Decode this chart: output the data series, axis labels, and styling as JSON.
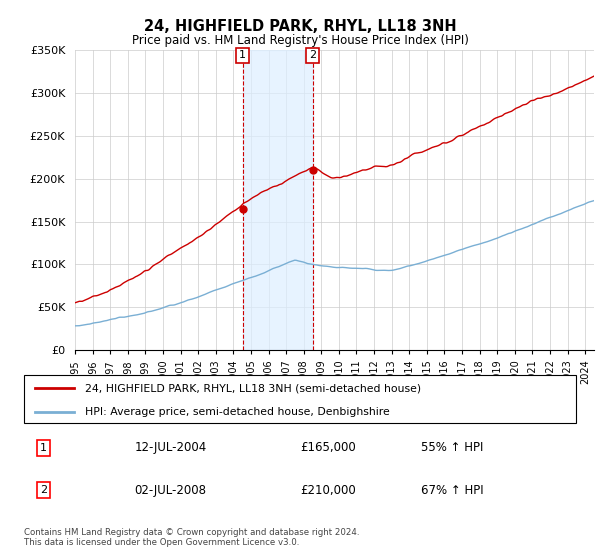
{
  "title": "24, HIGHFIELD PARK, RHYL, LL18 3NH",
  "subtitle": "Price paid vs. HM Land Registry's House Price Index (HPI)",
  "legend_line1": "24, HIGHFIELD PARK, RHYL, LL18 3NH (semi-detached house)",
  "legend_line2": "HPI: Average price, semi-detached house, Denbighshire",
  "sale1_date": "12-JUL-2004",
  "sale1_price": "£165,000",
  "sale1_pct": "55% ↑ HPI",
  "sale2_date": "02-JUL-2008",
  "sale2_price": "£210,000",
  "sale2_pct": "67% ↑ HPI",
  "footer": "Contains HM Land Registry data © Crown copyright and database right 2024.\nThis data is licensed under the Open Government Licence v3.0.",
  "red_color": "#cc0000",
  "blue_color": "#7aafd4",
  "shade_color": "#ddeeff",
  "ylim": [
    0,
    350000
  ],
  "yticks": [
    0,
    50000,
    100000,
    150000,
    200000,
    250000,
    300000,
    350000
  ],
  "ylabel_fmt": [
    "£0",
    "£50K",
    "£100K",
    "£150K",
    "£200K",
    "£250K",
    "£300K",
    "£350K"
  ],
  "sale1_year": 2004.53,
  "sale2_year": 2008.5,
  "xmin": 1995,
  "xmax": 2024.5
}
